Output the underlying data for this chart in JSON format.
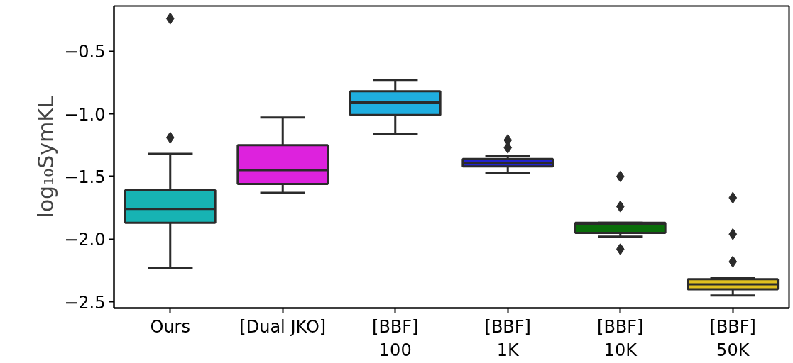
{
  "chart_data": {
    "type": "box",
    "ylabel": "log₁₀SymKL",
    "categories": [
      "Ours",
      "[Dual JKO]",
      "[BBF]\n100",
      "[BBF]\n1K",
      "[BBF]\n10K",
      "[BBF]\n50K"
    ],
    "colors": [
      "#17b3b3",
      "#dd22dd",
      "#1faee0",
      "#2222cc",
      "#0a6e0a",
      "#e0c020"
    ],
    "boxes": [
      {
        "low": -2.23,
        "q1": -1.87,
        "median": -1.76,
        "q3": -1.61,
        "high": -1.32,
        "outliers": [
          -0.24,
          -1.19
        ]
      },
      {
        "low": -1.63,
        "q1": -1.56,
        "median": -1.45,
        "q3": -1.25,
        "high": -1.03
      },
      {
        "low": -1.16,
        "q1": -1.01,
        "median": -0.91,
        "q3": -0.82,
        "high": -0.73
      },
      {
        "low": -1.47,
        "q1": -1.42,
        "median": -1.39,
        "q3": -1.36,
        "high": -1.34,
        "outliers": [
          -1.21,
          -1.27
        ]
      },
      {
        "low": -1.98,
        "q1": -1.95,
        "median": -1.88,
        "q3": -1.87,
        "high": -1.87,
        "outliers": [
          -1.5,
          -1.74,
          -2.08
        ]
      },
      {
        "low": -2.45,
        "q1": -2.4,
        "median": -2.36,
        "q3": -2.32,
        "high": -2.31,
        "outliers": [
          -1.67,
          -1.96,
          -2.18
        ]
      }
    ],
    "ylim": [
      -2.55,
      -0.14
    ],
    "yticks": [
      {
        "value": -2.5,
        "label": "−2.5"
      },
      {
        "value": -2.0,
        "label": "−2.0"
      },
      {
        "value": -1.5,
        "label": "−1.5"
      },
      {
        "value": -1.0,
        "label": "−1.0"
      },
      {
        "value": -0.5,
        "label": "−0.5"
      }
    ],
    "marker": "diamond",
    "grid": false
  }
}
